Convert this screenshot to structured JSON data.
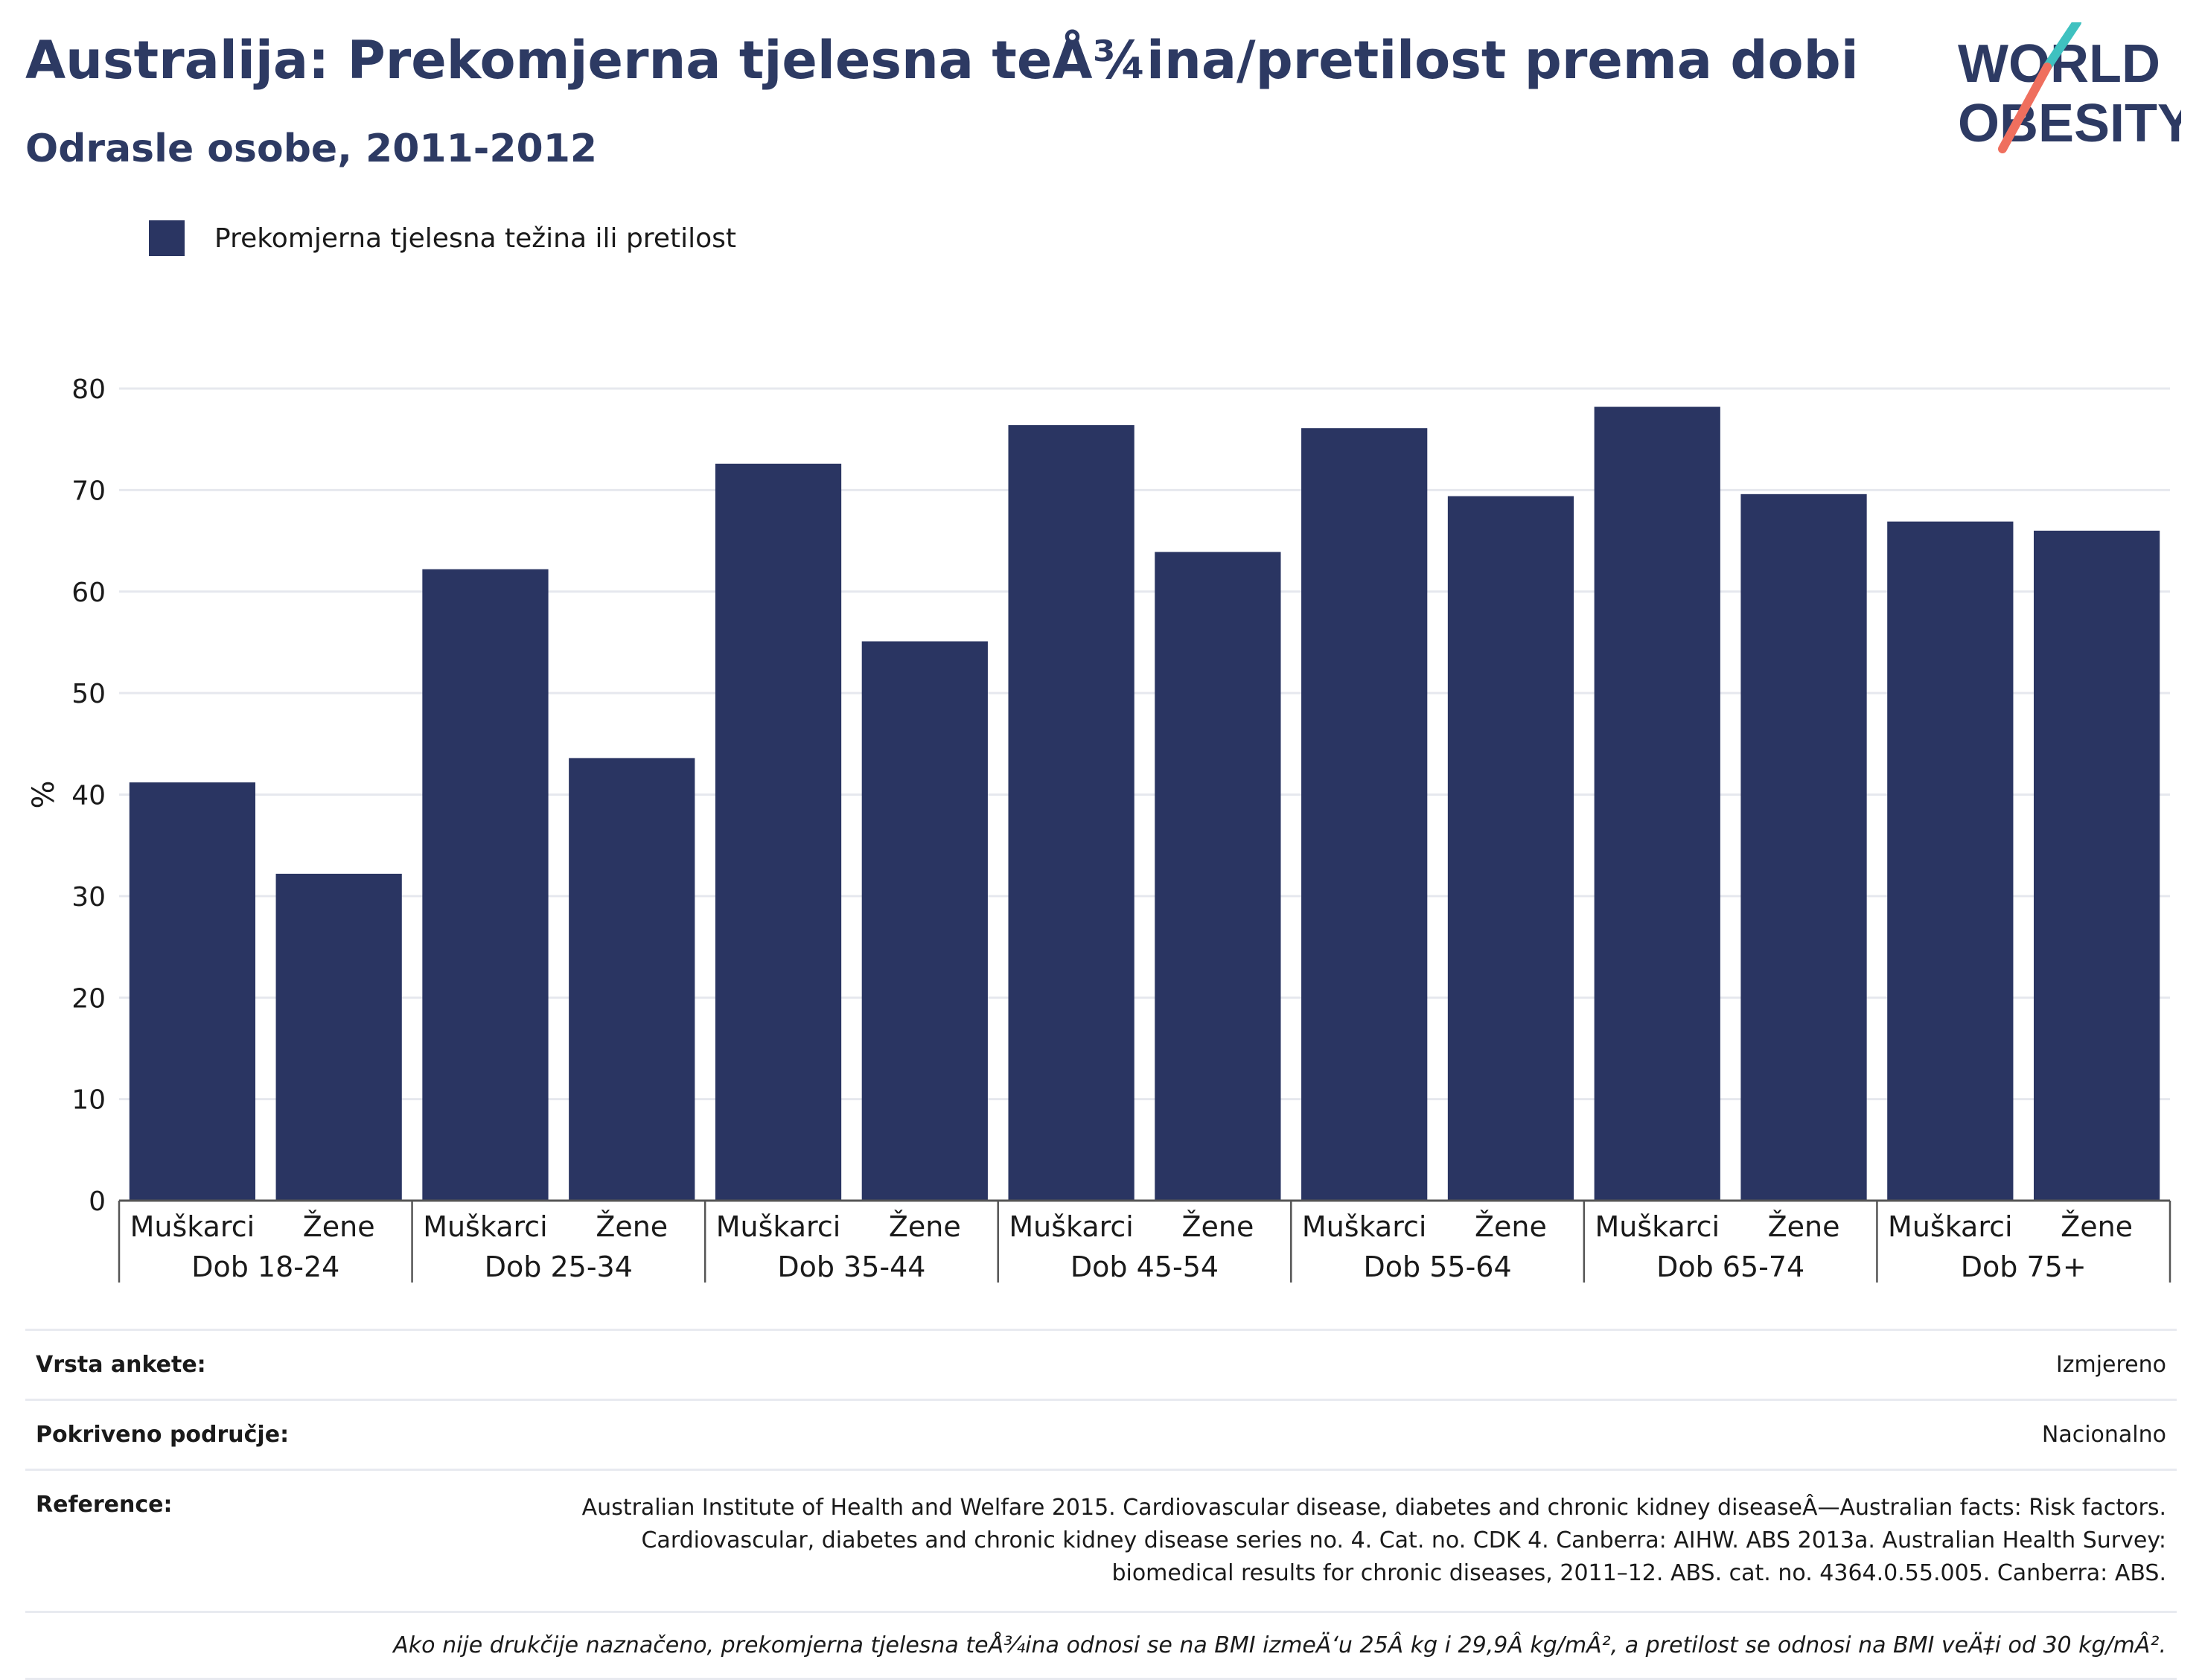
{
  "header": {
    "title": "Australija: Prekomjerna tjelesna teÅ¾ina/pretilost prema dobi",
    "subtitle": "Odrasle osobe, 2011-2012"
  },
  "logo": {
    "line1": "WORLD",
    "line2": "OBESITY",
    "accent_teal": "#3fc1c0",
    "accent_coral": "#ef6f5e"
  },
  "colors": {
    "bar": "#2a3562",
    "title": "#2d3a63",
    "grid": "#e6e8ee",
    "axis": "#555555"
  },
  "chart_data": {
    "type": "bar",
    "ylabel": "%",
    "ylim": [
      0,
      80
    ],
    "yticks": [
      0,
      10,
      20,
      30,
      40,
      50,
      60,
      70,
      80
    ],
    "grid": true,
    "legend_position": "top-left",
    "series": [
      {
        "name": "Prekomjerna tjelesna težina ili pretilost",
        "groups": [
          {
            "label": "Dob 18-24",
            "bars": [
              {
                "sub": "Muškarci",
                "value": 41.2
              },
              {
                "sub": "Žene",
                "value": 32.2
              }
            ]
          },
          {
            "label": "Dob 25-34",
            "bars": [
              {
                "sub": "Muškarci",
                "value": 62.2
              },
              {
                "sub": "Žene",
                "value": 43.6
              }
            ]
          },
          {
            "label": "Dob 35-44",
            "bars": [
              {
                "sub": "Muškarci",
                "value": 72.6
              },
              {
                "sub": "Žene",
                "value": 55.1
              }
            ]
          },
          {
            "label": "Dob 45-54",
            "bars": [
              {
                "sub": "Muškarci",
                "value": 76.4
              },
              {
                "sub": "Žene",
                "value": 63.9
              }
            ]
          },
          {
            "label": "Dob 55-64",
            "bars": [
              {
                "sub": "Muškarci",
                "value": 76.1
              },
              {
                "sub": "Žene",
                "value": 69.4
              }
            ]
          },
          {
            "label": "Dob 65-74",
            "bars": [
              {
                "sub": "Muškarci",
                "value": 78.2
              },
              {
                "sub": "Žene",
                "value": 69.6
              }
            ]
          },
          {
            "label": "Dob 75+",
            "bars": [
              {
                "sub": "Muškarci",
                "value": 66.9
              },
              {
                "sub": "Žene",
                "value": 66.0
              }
            ]
          }
        ]
      }
    ]
  },
  "info": {
    "survey_label": "Vrsta ankete:",
    "survey_value": "Izmjereno",
    "coverage_label": "Pokriveno područje:",
    "coverage_value": "Nacionalno",
    "reference_label": "Reference:",
    "reference_value": "Australian Institute of Health and Welfare 2015. Cardiovascular disease, diabetes and chronic kidney diseaseÂ—Australian facts: Risk factors. Cardiovascular, diabetes and chronic kidney disease series no. 4. Cat. no. CDK 4. Canberra: AIHW. ABS 2013a. Australian Health Survey: biomedical results for chronic diseases, 2011–12. ABS. cat. no. 4364.0.55.005. Canberra: ABS.",
    "note": "Ako nije drukčije naznačeno, prekomjerna tjelesna teÅ¾ina odnosi se na BMI izmeÄ‘u 25Â kg i 29,9Â kg/mÂ², a pretilost se odnosi na BMI veÄ‡i od 30 kg/mÂ²."
  }
}
